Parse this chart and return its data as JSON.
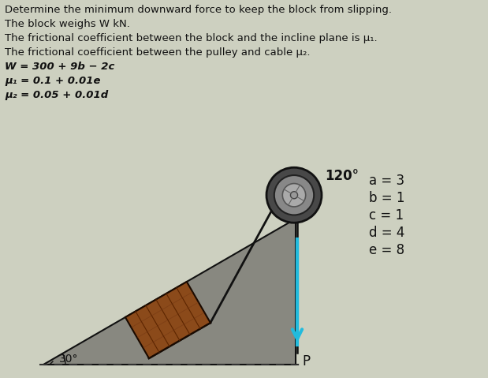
{
  "title_lines": [
    "Determine the minimum downward force to keep the block from slipping.",
    "The block weighs W kN.",
    "The frictional coefficient between the block and the incline plane is μ₁.",
    "The frictional coefficient between the pulley and cable μ₂.",
    "W = 300 + 9b − 2c",
    "μ₁ = 0.1 + 0.01e",
    "μ₂ = 0.05 + 0.01d"
  ],
  "variables": [
    "a = 3",
    "b = 1",
    "c = 1",
    "d = 4",
    "e = 8"
  ],
  "bg_color": "#cdd0c0",
  "block_face_color": "#8B4A1A",
  "block_edge_color": "#1a0a00",
  "incline_face_color": "#888880",
  "incline_edge_color": "#111111",
  "pulley_outer_color": "#484848",
  "pulley_mid_color": "#888888",
  "pulley_inner_color": "#aaaaaa",
  "pulley_hub_color": "#666666",
  "cable_color": "#111111",
  "arrow_color": "#22BBDD",
  "text_color": "#111111",
  "angle_label": "120°",
  "incline_angle_label": "30°",
  "force_label": "P"
}
